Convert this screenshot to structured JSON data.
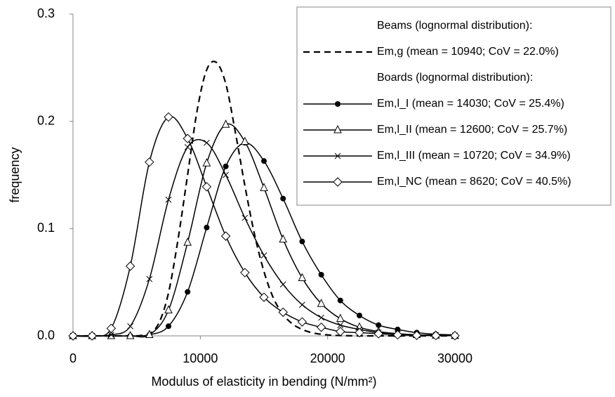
{
  "chart_data": {
    "type": "line",
    "xlabel": "Modulus of elasticity in bending (N/mm²)",
    "ylabel": "frequency",
    "xlim": [
      0,
      30000
    ],
    "xticks": [
      0,
      10000,
      20000,
      30000
    ],
    "ylim": [
      0,
      0.3
    ],
    "yticks": [
      {
        "value": 0,
        "label": "0.0"
      },
      0.1,
      0.2,
      0.3
    ],
    "legend_titles": [
      "Beams (lognormal distribution):",
      "Boards (lognormal distribution):"
    ],
    "series": [
      {
        "name": "Em,g (mean = 10940; CoV = 22.0%)",
        "color": "#000000",
        "dash": true,
        "marker": "none",
        "x": [
          0,
          1500,
          3000,
          4500,
          5250,
          6000,
          6750,
          7500,
          8250,
          9000,
          9750,
          10500,
          11250,
          12000,
          12750,
          13500,
          14250,
          15000,
          15750,
          16500,
          17250,
          18000,
          18750,
          19500,
          20250,
          21000,
          22500,
          24000,
          25500,
          27000,
          28500,
          30000
        ],
        "values": [
          0,
          0,
          0,
          0,
          0.0003,
          0.002,
          0.012,
          0.04,
          0.09,
          0.15,
          0.21,
          0.248,
          0.255,
          0.235,
          0.19,
          0.14,
          0.095,
          0.06,
          0.035,
          0.02,
          0.011,
          0.006,
          0.003,
          0.0015,
          0.0007,
          0.0003,
          0,
          0,
          0,
          0,
          0,
          0
        ]
      },
      {
        "name": "Em,l_I (mean = 14030; CoV = 25.4%)",
        "color": "#000000",
        "dash": false,
        "marker": "circle",
        "x": [
          0,
          1500,
          3000,
          4500,
          6000,
          7500,
          9000,
          10500,
          12000,
          13500,
          15000,
          16500,
          18000,
          19500,
          21000,
          22500,
          24000,
          25500,
          27000,
          28500,
          30000
        ],
        "values": [
          0,
          0,
          0,
          0,
          0.001,
          0.009,
          0.041,
          0.101,
          0.158,
          0.18,
          0.163,
          0.128,
          0.088,
          0.057,
          0.033,
          0.019,
          0.01,
          0.006,
          0.003,
          0.0015,
          0.001
        ]
      },
      {
        "name": "Em,l_II (mean = 12600; CoV = 25.7%)",
        "color": "#000000",
        "dash": false,
        "marker": "triangle",
        "x": [
          0,
          1500,
          3000,
          4500,
          6000,
          7500,
          9000,
          10500,
          12000,
          13500,
          15000,
          16500,
          18000,
          19500,
          21000,
          22500,
          24000,
          25500,
          27000,
          28500,
          30000
        ],
        "values": [
          0,
          0,
          0,
          0,
          0.001,
          0.024,
          0.087,
          0.161,
          0.197,
          0.181,
          0.138,
          0.09,
          0.054,
          0.03,
          0.016,
          0.008,
          0.004,
          0.002,
          0.001,
          0.0005,
          0.0002
        ]
      },
      {
        "name": "Em,l_III (mean = 10720; CoV = 34.9%)",
        "color": "#000000",
        "dash": false,
        "marker": "cross",
        "x": [
          0,
          1500,
          3000,
          4500,
          6000,
          7500,
          9000,
          10500,
          12000,
          13500,
          15000,
          16500,
          18000,
          19500,
          21000,
          22500,
          24000,
          25500,
          27000,
          28500,
          30000
        ],
        "values": [
          0,
          0,
          0.001,
          0.009,
          0.053,
          0.127,
          0.176,
          0.18,
          0.15,
          0.11,
          0.075,
          0.048,
          0.029,
          0.017,
          0.01,
          0.006,
          0.003,
          0.002,
          0.001,
          0.0007,
          0.0003
        ]
      },
      {
        "name": "Em,l_NC (mean = 8620; CoV = 40.5%)",
        "color": "#000000",
        "dash": false,
        "marker": "diamond",
        "x": [
          0,
          1500,
          3000,
          4500,
          6000,
          7500,
          9000,
          10500,
          12000,
          13500,
          15000,
          16500,
          18000,
          19500,
          21000,
          22500,
          24000,
          25500,
          27000,
          28500,
          30000
        ],
        "values": [
          0,
          0,
          0.007,
          0.065,
          0.162,
          0.204,
          0.184,
          0.139,
          0.093,
          0.059,
          0.036,
          0.022,
          0.013,
          0.008,
          0.004,
          0.003,
          0.002,
          0.001,
          0.0005,
          0.0003,
          0.0002
        ]
      }
    ]
  }
}
